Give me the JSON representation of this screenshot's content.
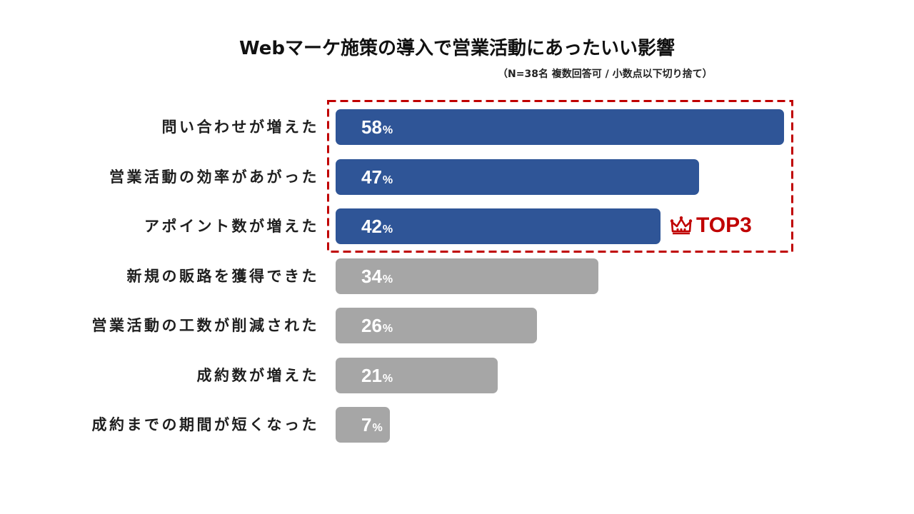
{
  "chart_data": {
    "type": "bar",
    "orientation": "horizontal",
    "title": "Webマーケ施策の導入で営業活動にあったいい影響",
    "subtitle": "（N=38名 複数回答可 / 小数点以下切り捨て）",
    "categories": [
      "問い合わせが増えた",
      "営業活動の効率があがった",
      "アポイント数が増えた",
      "新規の販路を獲得できた",
      "営業活動の工数が削減された",
      "成約数が増えた",
      "成約までの期間が短くなった"
    ],
    "values": [
      58,
      47,
      42,
      34,
      26,
      21,
      7
    ],
    "value_suffix": "%",
    "xlim": [
      0,
      58
    ],
    "bar_colors": [
      "#2f5597",
      "#2f5597",
      "#2f5597",
      "#a6a6a6",
      "#a6a6a6",
      "#a6a6a6",
      "#a6a6a6"
    ],
    "grid": false,
    "legend": "none",
    "annotation": {
      "label": "TOP3",
      "icon": "crown-icon",
      "color": "#c00000"
    }
  }
}
